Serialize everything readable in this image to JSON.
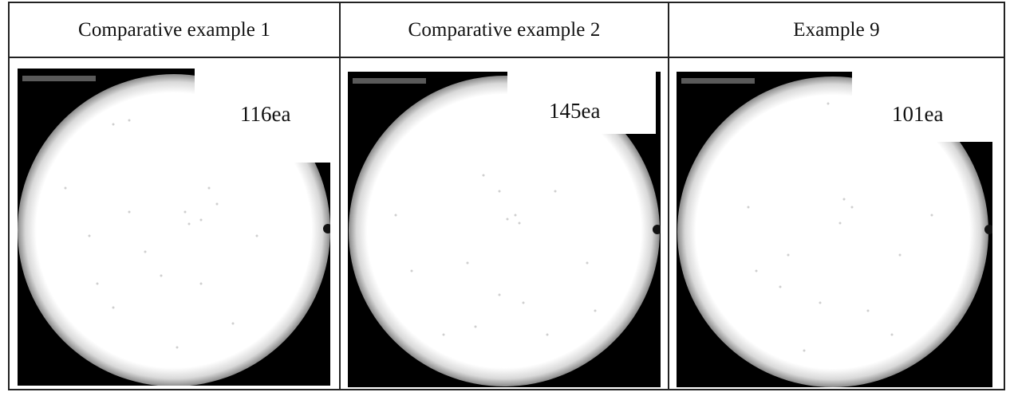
{
  "table": {
    "columns": [
      {
        "header": "Comparative example 1",
        "count": "116ea"
      },
      {
        "header": "Comparative example 2",
        "count": "145ea"
      },
      {
        "header": "Example 9",
        "count": "101ea"
      }
    ]
  },
  "colors": {
    "border": "#222222",
    "background": "#000000",
    "wafer": "#ffffff"
  }
}
